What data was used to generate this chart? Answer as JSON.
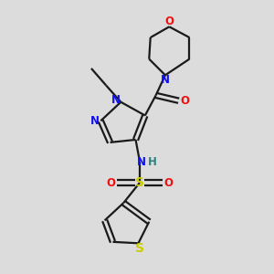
{
  "bg_color": "#dcdcdc",
  "bond_color": "#1a1a1a",
  "N_color": "#1010ee",
  "O_color": "#ee1010",
  "S_color": "#cccc00",
  "H_color": "#308080",
  "figsize": [
    3.0,
    3.0
  ],
  "dpi": 100,
  "xlim": [
    0,
    10
  ],
  "ylim": [
    0,
    10
  ]
}
